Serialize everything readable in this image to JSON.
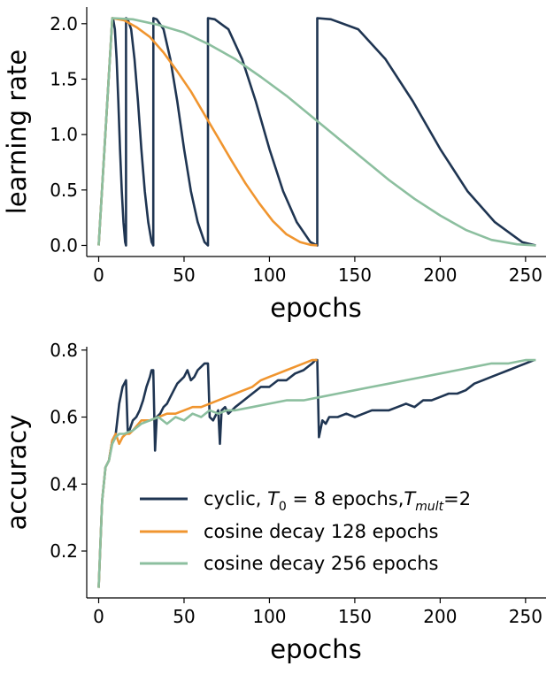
{
  "chart_data": [
    {
      "type": "line",
      "xlabel": "epochs",
      "ylabel": "learning rate",
      "xlim": [
        -7,
        262
      ],
      "ylim": [
        -0.1,
        2.15
      ],
      "xticks": [
        0,
        50,
        100,
        150,
        200,
        250
      ],
      "yticks": [
        0.0,
        0.5,
        1.0,
        1.5,
        2.0
      ],
      "xtick_labels": [
        "0",
        "50",
        "100",
        "150",
        "200",
        "250"
      ],
      "ytick_labels": [
        "0.0",
        "0.5",
        "1.0",
        "1.5",
        "2.0"
      ],
      "grid": false,
      "series": [
        {
          "color": "#1f3552",
          "x": [
            0,
            8,
            8.5,
            9.5,
            10.5,
            11.5,
            12.5,
            13.5,
            14.5,
            15.5,
            16,
            16.01,
            17,
            19,
            21,
            23,
            25,
            27,
            29,
            31,
            32,
            32.01,
            34,
            38,
            42,
            46,
            50,
            54,
            58,
            62,
            64,
            64.01,
            68,
            76,
            84,
            92,
            100,
            108,
            116,
            124,
            128,
            128.01,
            136,
            152,
            168,
            184,
            200,
            216,
            232,
            248,
            256
          ],
          "y": [
            0.0,
            2.05,
            2.04,
            1.95,
            1.68,
            1.3,
            0.87,
            0.49,
            0.21,
            0.03,
            0.0,
            2.05,
            2.04,
            1.95,
            1.68,
            1.3,
            0.87,
            0.49,
            0.21,
            0.03,
            0.0,
            2.05,
            2.04,
            1.95,
            1.68,
            1.3,
            0.87,
            0.49,
            0.21,
            0.03,
            0.0,
            2.05,
            2.04,
            1.95,
            1.68,
            1.3,
            0.87,
            0.49,
            0.21,
            0.03,
            0.0,
            2.05,
            2.04,
            1.95,
            1.68,
            1.3,
            0.87,
            0.49,
            0.21,
            0.03,
            0.0
          ]
        },
        {
          "color": "#f0952f",
          "x": [
            0,
            8,
            15,
            22,
            30,
            38,
            46,
            54,
            62,
            70,
            78,
            86,
            94,
            102,
            110,
            118,
            124,
            128
          ],
          "y": [
            0.0,
            2.05,
            2.03,
            1.97,
            1.88,
            1.74,
            1.57,
            1.39,
            1.18,
            0.97,
            0.76,
            0.56,
            0.38,
            0.22,
            0.1,
            0.03,
            0.005,
            0.0
          ]
        },
        {
          "color": "#8cbf9f",
          "x": [
            0,
            8,
            20,
            35,
            50,
            65,
            80,
            95,
            110,
            125,
            140,
            155,
            170,
            185,
            200,
            215,
            230,
            245,
            256
          ],
          "y": [
            0.0,
            2.05,
            2.04,
            1.99,
            1.92,
            1.81,
            1.68,
            1.52,
            1.35,
            1.16,
            0.97,
            0.78,
            0.59,
            0.42,
            0.27,
            0.14,
            0.05,
            0.01,
            0.0
          ]
        }
      ]
    },
    {
      "type": "line",
      "xlabel": "epochs",
      "ylabel": "accuracy",
      "xlim": [
        -7,
        262
      ],
      "ylim": [
        0.06,
        0.81
      ],
      "xticks": [
        0,
        50,
        100,
        150,
        200,
        250
      ],
      "yticks": [
        0.2,
        0.4,
        0.6,
        0.8
      ],
      "xtick_labels": [
        "0",
        "50",
        "100",
        "150",
        "200",
        "250"
      ],
      "ytick_labels": [
        "0.2",
        "0.4",
        "0.6",
        "0.8"
      ],
      "grid": false,
      "legend_position": "lower-right",
      "series": [
        {
          "name_prefix": "cyclic, ",
          "name_math_1": "T",
          "name_sub_1": "0",
          "name_mid": " = 8 epochs,",
          "name_math_2": "T",
          "name_sub_2": "mult",
          "name_suffix": "=2",
          "color": "#1f3552",
          "x": [
            0,
            2,
            4,
            6,
            8,
            10,
            12,
            14,
            15,
            16,
            17,
            18,
            20,
            22,
            24,
            26,
            28,
            30,
            31,
            32,
            33,
            34,
            36,
            38,
            40,
            42,
            44,
            46,
            48,
            50,
            52,
            54,
            56,
            58,
            60,
            62,
            63,
            64,
            65,
            67,
            68,
            70,
            71,
            72,
            74,
            76,
            80,
            85,
            90,
            95,
            100,
            105,
            110,
            115,
            120,
            125,
            127,
            128,
            129,
            131,
            133,
            135,
            140,
            145,
            150,
            155,
            160,
            165,
            170,
            175,
            180,
            185,
            190,
            195,
            200,
            205,
            210,
            215,
            220,
            225,
            230,
            235,
            240,
            245,
            250,
            255
          ],
          "y": [
            0.09,
            0.35,
            0.45,
            0.47,
            0.53,
            0.55,
            0.64,
            0.69,
            0.7,
            0.71,
            0.56,
            0.56,
            0.59,
            0.6,
            0.62,
            0.65,
            0.69,
            0.72,
            0.74,
            0.74,
            0.5,
            0.6,
            0.61,
            0.63,
            0.64,
            0.66,
            0.68,
            0.7,
            0.71,
            0.72,
            0.74,
            0.71,
            0.72,
            0.74,
            0.75,
            0.76,
            0.76,
            0.76,
            0.6,
            0.59,
            0.6,
            0.62,
            0.52,
            0.62,
            0.63,
            0.61,
            0.63,
            0.65,
            0.67,
            0.69,
            0.69,
            0.71,
            0.71,
            0.73,
            0.74,
            0.76,
            0.77,
            0.77,
            0.54,
            0.59,
            0.58,
            0.6,
            0.6,
            0.61,
            0.6,
            0.61,
            0.62,
            0.62,
            0.62,
            0.63,
            0.64,
            0.63,
            0.65,
            0.65,
            0.66,
            0.67,
            0.67,
            0.68,
            0.7,
            0.71,
            0.72,
            0.73,
            0.74,
            0.75,
            0.76,
            0.77
          ]
        },
        {
          "name": "cosine decay 128 epochs",
          "color": "#f0952f",
          "x": [
            0,
            2,
            4,
            6,
            8,
            10,
            12,
            14,
            16,
            18,
            20,
            25,
            30,
            35,
            40,
            45,
            50,
            55,
            60,
            65,
            70,
            75,
            80,
            85,
            90,
            95,
            100,
            105,
            110,
            115,
            120,
            125,
            128
          ],
          "y": [
            0.09,
            0.35,
            0.45,
            0.47,
            0.53,
            0.55,
            0.52,
            0.54,
            0.55,
            0.55,
            0.56,
            0.59,
            0.59,
            0.6,
            0.61,
            0.61,
            0.62,
            0.63,
            0.63,
            0.64,
            0.65,
            0.66,
            0.67,
            0.68,
            0.69,
            0.71,
            0.72,
            0.73,
            0.74,
            0.75,
            0.76,
            0.77,
            0.77
          ]
        },
        {
          "name": "cosine decay 256 epochs",
          "color": "#8cbf9f",
          "x": [
            0,
            2,
            4,
            6,
            8,
            10,
            12,
            15,
            20,
            25,
            30,
            35,
            40,
            45,
            50,
            55,
            60,
            65,
            70,
            75,
            80,
            90,
            100,
            110,
            120,
            130,
            140,
            150,
            160,
            170,
            180,
            190,
            200,
            210,
            220,
            230,
            240,
            250,
            256
          ],
          "y": [
            0.09,
            0.35,
            0.45,
            0.47,
            0.52,
            0.54,
            0.55,
            0.55,
            0.56,
            0.58,
            0.59,
            0.6,
            0.58,
            0.6,
            0.59,
            0.61,
            0.6,
            0.62,
            0.61,
            0.62,
            0.62,
            0.63,
            0.64,
            0.65,
            0.65,
            0.66,
            0.67,
            0.68,
            0.69,
            0.7,
            0.71,
            0.72,
            0.73,
            0.74,
            0.75,
            0.76,
            0.76,
            0.77,
            0.77
          ]
        }
      ]
    }
  ]
}
